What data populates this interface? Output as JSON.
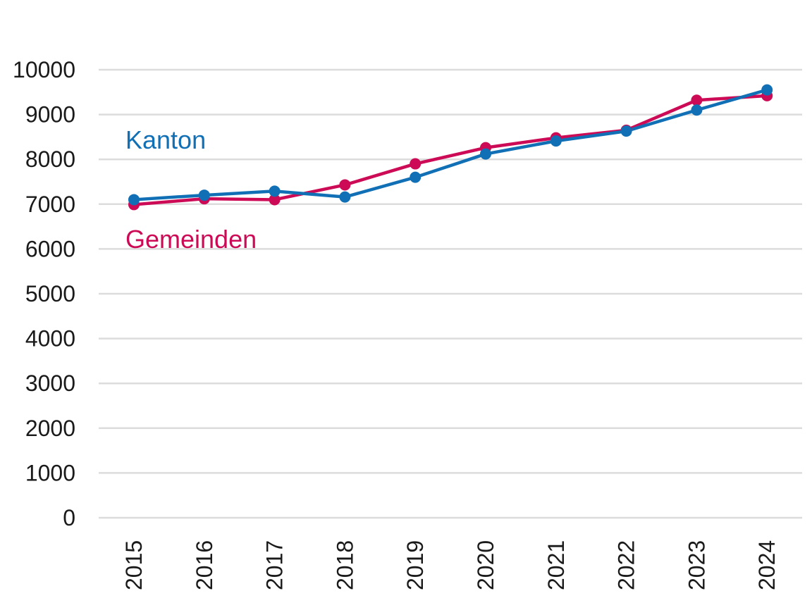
{
  "chart_data": {
    "type": "line",
    "title": "",
    "xlabel": "",
    "ylabel": "",
    "categories": [
      "2015",
      "2016",
      "2017",
      "2018",
      "2019",
      "2020",
      "2021",
      "2022",
      "2023",
      "2024"
    ],
    "y_ticks": [
      "0",
      "1000",
      "2000",
      "3000",
      "4000",
      "5000",
      "6000",
      "7000",
      "8000",
      "9000",
      "10000"
    ],
    "ylim": [
      0,
      10000
    ],
    "grid": true,
    "legend": "inline labels",
    "series": [
      {
        "name": "Kanton",
        "color": "#1170b5",
        "values": [
          7100,
          7200,
          7290,
          7160,
          7600,
          8120,
          8410,
          8630,
          9100,
          9550
        ]
      },
      {
        "name": "Gemeinden",
        "color": "#cc0a55",
        "values": [
          6990,
          7120,
          7100,
          7430,
          7900,
          8260,
          8480,
          8650,
          9320,
          9420
        ]
      }
    ]
  }
}
